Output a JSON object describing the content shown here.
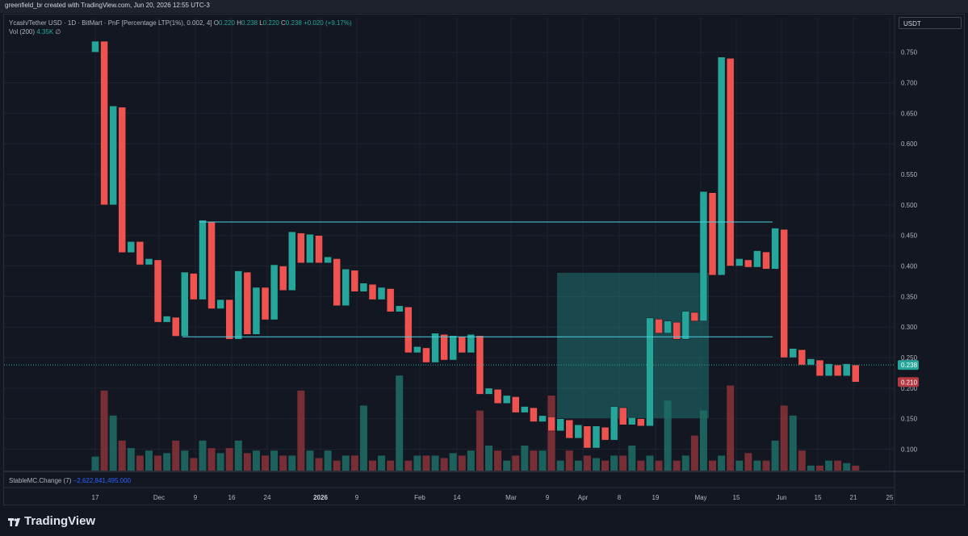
{
  "header": {
    "attribution": "greenfield_br created with TradingView.com, Jun 20, 2026 12:55 UTC-3"
  },
  "legend": {
    "symbol": "Ycash/Tether USD · 1D · BitMart · PnF [Percentage LTP(1%), 0.002, 4]",
    "o_label": "O",
    "o_value": "0.220",
    "h_label": "H",
    "h_value": "0.238",
    "l_label": "L",
    "l_value": "0.220",
    "c_label": "C",
    "c_value": "0.238",
    "change": "+0.020 (+9.17%)",
    "vol_label": "Vol (200)",
    "vol_value": "4.35K",
    "vol_icon": "∅"
  },
  "indicator": {
    "label": "StableMC.Change (7)",
    "value": "−2,622,841,495.000"
  },
  "currency_button": "USDT",
  "brand": "TradingView",
  "colors": {
    "up": "#26a69a",
    "down": "#ef5350",
    "background": "#131722",
    "line": "#4dd0e1"
  },
  "chart_data": {
    "type": "point_and_figure",
    "y_ticks": [
      "0.100",
      "0.150",
      "0.200",
      "0.250",
      "0.300",
      "0.350",
      "0.400",
      "0.450",
      "0.500",
      "0.550",
      "0.600",
      "0.650",
      "0.700",
      "0.750"
    ],
    "x_ticks": [
      "17",
      "Dec",
      "9",
      "16",
      "24",
      "2026",
      "9",
      "Feb",
      "14",
      "Mar",
      "9",
      "Apr",
      "8",
      "19",
      "May",
      "15",
      "Jun",
      "15",
      "21",
      "25"
    ],
    "ylim": [
      0.065,
      0.78
    ],
    "last_price": "0.238",
    "second_price": "0.210",
    "columns": [
      {
        "dir": "up",
        "low": 0.75,
        "high": 0.768
      },
      {
        "dir": "down",
        "low": 0.5,
        "high": 0.768
      },
      {
        "dir": "up",
        "low": 0.5,
        "high": 0.662
      },
      {
        "dir": "down",
        "low": 0.422,
        "high": 0.66
      },
      {
        "dir": "up",
        "low": 0.422,
        "high": 0.44
      },
      {
        "dir": "down",
        "low": 0.402,
        "high": 0.44
      },
      {
        "dir": "up",
        "low": 0.402,
        "high": 0.412
      },
      {
        "dir": "down",
        "low": 0.308,
        "high": 0.41
      },
      {
        "dir": "up",
        "low": 0.308,
        "high": 0.318
      },
      {
        "dir": "down",
        "low": 0.285,
        "high": 0.316
      },
      {
        "dir": "up",
        "low": 0.285,
        "high": 0.39
      },
      {
        "dir": "down",
        "low": 0.345,
        "high": 0.388
      },
      {
        "dir": "up",
        "low": 0.345,
        "high": 0.475
      },
      {
        "dir": "down",
        "low": 0.33,
        "high": 0.473
      },
      {
        "dir": "up",
        "low": 0.33,
        "high": 0.345
      },
      {
        "dir": "down",
        "low": 0.28,
        "high": 0.345
      },
      {
        "dir": "up",
        "low": 0.28,
        "high": 0.392
      },
      {
        "dir": "down",
        "low": 0.288,
        "high": 0.39
      },
      {
        "dir": "up",
        "low": 0.288,
        "high": 0.365
      },
      {
        "dir": "down",
        "low": 0.312,
        "high": 0.365
      },
      {
        "dir": "up",
        "low": 0.312,
        "high": 0.402
      },
      {
        "dir": "down",
        "low": 0.36,
        "high": 0.4
      },
      {
        "dir": "up",
        "low": 0.36,
        "high": 0.456
      },
      {
        "dir": "down",
        "low": 0.405,
        "high": 0.454
      },
      {
        "dir": "up",
        "low": 0.405,
        "high": 0.452
      },
      {
        "dir": "down",
        "low": 0.405,
        "high": 0.45
      },
      {
        "dir": "up",
        "low": 0.405,
        "high": 0.415
      },
      {
        "dir": "down",
        "low": 0.335,
        "high": 0.412
      },
      {
        "dir": "up",
        "low": 0.335,
        "high": 0.395
      },
      {
        "dir": "down",
        "low": 0.358,
        "high": 0.393
      },
      {
        "dir": "up",
        "low": 0.358,
        "high": 0.372
      },
      {
        "dir": "down",
        "low": 0.345,
        "high": 0.37
      },
      {
        "dir": "up",
        "low": 0.345,
        "high": 0.365
      },
      {
        "dir": "down",
        "low": 0.325,
        "high": 0.363
      },
      {
        "dir": "up",
        "low": 0.325,
        "high": 0.335
      },
      {
        "dir": "down",
        "low": 0.258,
        "high": 0.333
      },
      {
        "dir": "up",
        "low": 0.258,
        "high": 0.268
      },
      {
        "dir": "down",
        "low": 0.242,
        "high": 0.266
      },
      {
        "dir": "up",
        "low": 0.242,
        "high": 0.29
      },
      {
        "dir": "down",
        "low": 0.246,
        "high": 0.288
      },
      {
        "dir": "up",
        "low": 0.246,
        "high": 0.286
      },
      {
        "dir": "down",
        "low": 0.258,
        "high": 0.284
      },
      {
        "dir": "up",
        "low": 0.258,
        "high": 0.288
      },
      {
        "dir": "down",
        "low": 0.19,
        "high": 0.286
      },
      {
        "dir": "up",
        "low": 0.19,
        "high": 0.2
      },
      {
        "dir": "down",
        "low": 0.175,
        "high": 0.198
      },
      {
        "dir": "up",
        "low": 0.175,
        "high": 0.188
      },
      {
        "dir": "down",
        "low": 0.16,
        "high": 0.186
      },
      {
        "dir": "up",
        "low": 0.16,
        "high": 0.17
      },
      {
        "dir": "down",
        "low": 0.145,
        "high": 0.168
      },
      {
        "dir": "up",
        "low": 0.145,
        "high": 0.155
      },
      {
        "dir": "down",
        "low": 0.13,
        "high": 0.153
      },
      {
        "dir": "up",
        "low": 0.13,
        "high": 0.15
      },
      {
        "dir": "down",
        "low": 0.118,
        "high": 0.148
      },
      {
        "dir": "up",
        "low": 0.118,
        "high": 0.14
      },
      {
        "dir": "down",
        "low": 0.102,
        "high": 0.138
      },
      {
        "dir": "up",
        "low": 0.102,
        "high": 0.138
      },
      {
        "dir": "down",
        "low": 0.115,
        "high": 0.136
      },
      {
        "dir": "up",
        "low": 0.115,
        "high": 0.17
      },
      {
        "dir": "down",
        "low": 0.14,
        "high": 0.168
      },
      {
        "dir": "up",
        "low": 0.14,
        "high": 0.152
      },
      {
        "dir": "down",
        "low": 0.138,
        "high": 0.15
      },
      {
        "dir": "up",
        "low": 0.138,
        "high": 0.315
      },
      {
        "dir": "down",
        "low": 0.29,
        "high": 0.313
      },
      {
        "dir": "up",
        "low": 0.29,
        "high": 0.31
      },
      {
        "dir": "down",
        "low": 0.28,
        "high": 0.308
      },
      {
        "dir": "up",
        "low": 0.28,
        "high": 0.326
      },
      {
        "dir": "down",
        "low": 0.31,
        "high": 0.324
      },
      {
        "dir": "up",
        "low": 0.31,
        "high": 0.522
      },
      {
        "dir": "down",
        "low": 0.385,
        "high": 0.52
      },
      {
        "dir": "up",
        "low": 0.385,
        "high": 0.742
      },
      {
        "dir": "down",
        "low": 0.4,
        "high": 0.74
      },
      {
        "dir": "up",
        "low": 0.4,
        "high": 0.412
      },
      {
        "dir": "down",
        "low": 0.398,
        "high": 0.41
      },
      {
        "dir": "up",
        "low": 0.398,
        "high": 0.425
      },
      {
        "dir": "down",
        "low": 0.395,
        "high": 0.423
      },
      {
        "dir": "up",
        "low": 0.395,
        "high": 0.462
      },
      {
        "dir": "down",
        "low": 0.25,
        "high": 0.46
      },
      {
        "dir": "up",
        "low": 0.25,
        "high": 0.265
      },
      {
        "dir": "down",
        "low": 0.238,
        "high": 0.263
      },
      {
        "dir": "up",
        "low": 0.238,
        "high": 0.248
      },
      {
        "dir": "down",
        "low": 0.22,
        "high": 0.246
      },
      {
        "dir": "up",
        "low": 0.22,
        "high": 0.24
      },
      {
        "dir": "down",
        "low": 0.22,
        "high": 0.238
      },
      {
        "dir": "up",
        "low": 0.22,
        "high": 0.24
      },
      {
        "dir": "down",
        "low": 0.21,
        "high": 0.238
      }
    ],
    "volume": [
      28,
      160,
      110,
      60,
      45,
      30,
      40,
      30,
      35,
      60,
      40,
      25,
      60,
      45,
      35,
      45,
      60,
      35,
      40,
      30,
      40,
      30,
      30,
      160,
      40,
      25,
      40,
      20,
      30,
      30,
      130,
      20,
      30,
      20,
      190,
      20,
      30,
      30,
      30,
      25,
      35,
      30,
      40,
      120,
      50,
      40,
      20,
      30,
      50,
      40,
      40,
      150,
      20,
      40,
      20,
      30,
      25,
      20,
      30,
      30,
      50,
      20,
      30,
      20,
      140,
      20,
      30,
      70,
      120,
      20,
      30,
      170,
      20,
      35,
      20,
      20,
      60,
      130,
      110,
      40,
      10,
      10,
      20,
      20,
      15,
      10
    ]
  }
}
